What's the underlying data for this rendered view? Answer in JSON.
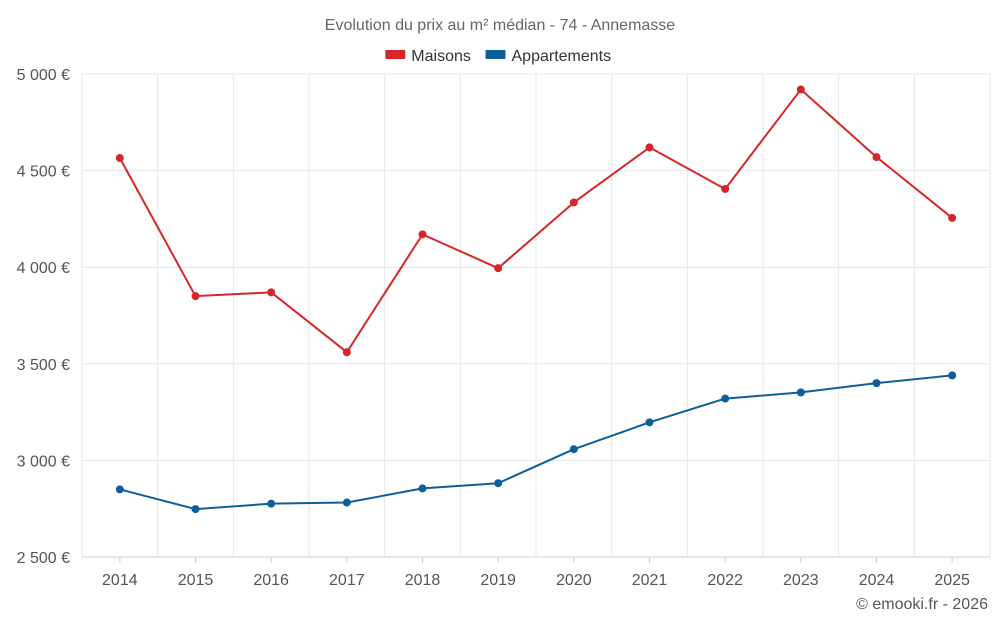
{
  "chart_data": {
    "type": "line",
    "title": "Evolution du prix au m² médian - 74 - Annemasse",
    "categories": [
      "2014",
      "2015",
      "2016",
      "2017",
      "2018",
      "2019",
      "2020",
      "2021",
      "2022",
      "2023",
      "2024",
      "2025"
    ],
    "series": [
      {
        "name": "Maisons",
        "color": "#d62728",
        "values": [
          4565,
          3850,
          3870,
          3560,
          4170,
          3995,
          4335,
          4620,
          4405,
          4920,
          4570,
          4255
        ]
      },
      {
        "name": "Appartements",
        "color": "#0d5f9a",
        "values": [
          2850,
          2748,
          2776,
          2782,
          2855,
          2882,
          3058,
          3197,
          3320,
          3352,
          3400,
          3440
        ]
      }
    ],
    "ylim": [
      2500,
      5000
    ],
    "yticks": [
      2500,
      3000,
      3500,
      4000,
      4500,
      5000
    ],
    "ytick_labels": [
      "2 500 €",
      "3 000 €",
      "3 500 €",
      "4 000 €",
      "4 500 €",
      "5 000 €"
    ],
    "xlabel": "",
    "ylabel": "",
    "grid": true,
    "legend_position": "top-center"
  },
  "credit": "© emooki.fr - 2026"
}
